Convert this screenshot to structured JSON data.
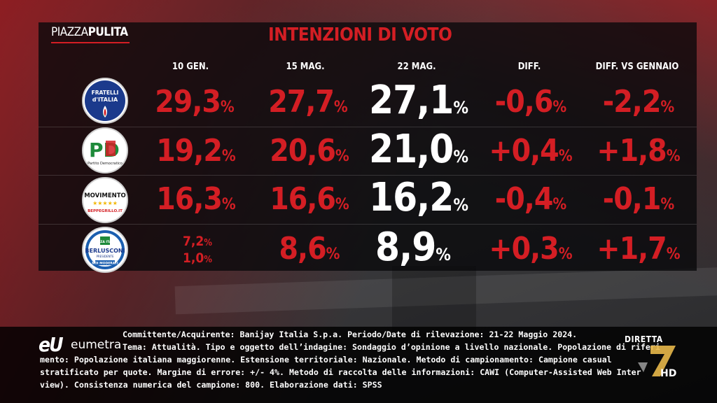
{
  "brand": {
    "left": "PIAZZA",
    "right": "PULITA"
  },
  "title": "INTENZIONI DI VOTO",
  "columns": [
    "10 GEN.",
    "15 MAG.",
    "22 MAG.",
    "DIFF.",
    "DIFF. VS GENNAIO"
  ],
  "pct": "%",
  "rows": [
    {
      "logo": "fratelli-italia",
      "logo_text": [
        "FRATELLI",
        "d'ITALIA"
      ],
      "c1": "29,3",
      "c2": "27,7",
      "c3": "27,1",
      "c4": "-0,6",
      "c5": "-2,2"
    },
    {
      "logo": "partito-democratico",
      "logo_text": [
        "PD",
        "Partito Democratico"
      ],
      "c1": "19,2",
      "c2": "20,6",
      "c3": "21,0",
      "c4": "+0,4",
      "c5": "+1,8"
    },
    {
      "logo": "movimento-5-stelle",
      "logo_text": [
        "MOVIMENTO",
        "BEPPEGRILLO.IT"
      ],
      "c1": "16,3",
      "c2": "16,6",
      "c3": "16,2",
      "c4": "-0,4",
      "c5": "-0,1"
    },
    {
      "logo": "forza-italia",
      "logo_text": [
        "FORZA ITALIA",
        "BERLUSCONI",
        "PRESIDENTE",
        "NOI MODERATI"
      ],
      "c1a": "7,2",
      "c1b": "1,0",
      "c2": "8,6",
      "c3": "8,9",
      "c4": "+0,3",
      "c5": "+1,7"
    }
  ],
  "footer": {
    "logo_mark": "eU",
    "logo_word": "eumetra",
    "lines": [
      "Committente/Acquirente: Banijay Italia S.p.a. Periodo/Date di rilevazione: 21-22 Maggio 2024.",
      "Tema: Attualità. Tipo e oggetto dell’indagine: Sondaggio d’opinione a livello nazionale. Popolazione di riferi",
      "mento: Popolazione italiana maggiorenne. Estensione territoriale: Nazionale. Metodo di campionamento: Campione casual",
      "stratificato per quote. Margine di errore: +/- 4%. Metodo di raccolta delle informazioni: CAWI (Computer-Assisted Web Inter",
      "view). Consistenza numerica del campione: 800. Elaborazione dati: SPSS"
    ],
    "diretta": "DIRETTA",
    "channel_hd": "HD"
  },
  "colors": {
    "red": "#d41e24",
    "white": "#ffffff"
  }
}
